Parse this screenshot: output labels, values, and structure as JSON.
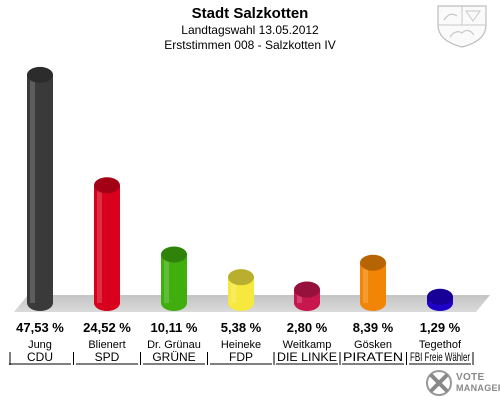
{
  "header": {
    "title": "Stadt Salzkotten",
    "subtitle_line1": "Landtagswahl 13.05.2012",
    "subtitle_line2": "Erststimmen 008 - Salzkotten IV"
  },
  "logo": {
    "line1": "VOTE",
    "line2": "MANAGER",
    "icon": "vote-manager-x-icon"
  },
  "crest": {
    "icon": "nrw-coat-of-arms-icon"
  },
  "chart_data": {
    "type": "bar",
    "title": "Stadt Salzkotten",
    "categories": [
      "CDU",
      "SPD",
      "GRÜNE",
      "FDP",
      "DIE LINKE",
      "PIRATEN",
      "FBI Freie Wähler"
    ],
    "candidates": [
      "Jung",
      "Blienert",
      "Dr. Grünau",
      "Heineke",
      "Weitkamp",
      "Gösken",
      "Tegethof"
    ],
    "values": [
      47.53,
      24.52,
      10.11,
      5.38,
      2.8,
      8.39,
      1.29
    ],
    "value_labels": [
      "47,53 %",
      "24,52 %",
      "10,11 %",
      "5,38 %",
      "2,80 %",
      "8,39 %",
      "1,29 %"
    ],
    "colors": [
      "#3a3a3a",
      "#d8001c",
      "#3fae0e",
      "#f6e83c",
      "#c8174f",
      "#f28505",
      "#1e00c8"
    ],
    "ylim": [
      0,
      50
    ],
    "ylabel": "",
    "xlabel": "",
    "grid": false,
    "legend": "none"
  }
}
